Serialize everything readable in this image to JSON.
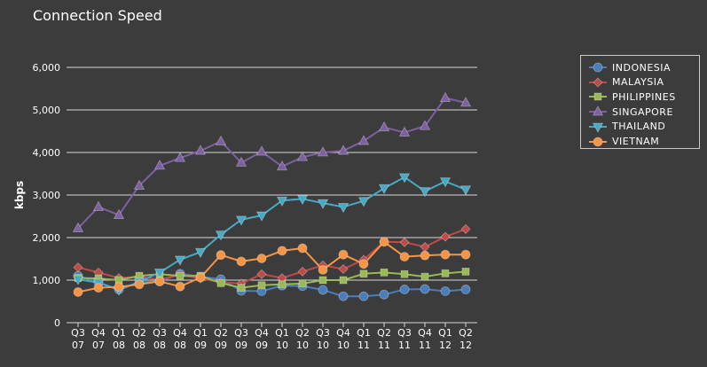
{
  "chart_data": {
    "type": "line",
    "title": "Connection Speed",
    "xlabel": "",
    "ylabel": "kbps",
    "ylim": [
      0,
      6000
    ],
    "yticks": [
      0,
      1000,
      2000,
      3000,
      4000,
      5000,
      6000
    ],
    "ytick_labels": [
      "0",
      "1,000",
      "2,000",
      "3,000",
      "4,000",
      "5,000",
      "6,000"
    ],
    "grid": true,
    "legend_position": "top-right",
    "categories": [
      [
        "Q3",
        "07"
      ],
      [
        "Q4",
        "07"
      ],
      [
        "Q1",
        "08"
      ],
      [
        "Q2",
        "08"
      ],
      [
        "Q3",
        "08"
      ],
      [
        "Q4",
        "08"
      ],
      [
        "Q1",
        "09"
      ],
      [
        "Q2",
        "09"
      ],
      [
        "Q3",
        "09"
      ],
      [
        "Q4",
        "09"
      ],
      [
        "Q1",
        "10"
      ],
      [
        "Q2",
        "10"
      ],
      [
        "Q3",
        "10"
      ],
      [
        "Q4",
        "10"
      ],
      [
        "Q1",
        "11"
      ],
      [
        "Q2",
        "11"
      ],
      [
        "Q3",
        "11"
      ],
      [
        "Q4",
        "11"
      ],
      [
        "Q1",
        "12"
      ],
      [
        "Q2",
        "12"
      ]
    ],
    "series": [
      {
        "name": "INDONESIA",
        "color": "#4a7ebb",
        "marker": "circle",
        "values": [
          1100,
          950,
          780,
          950,
          970,
          1150,
          1080,
          1020,
          750,
          740,
          870,
          860,
          770,
          620,
          620,
          660,
          780,
          790,
          740,
          780
        ]
      },
      {
        "name": "MALAYSIA",
        "color": "#be4b48",
        "marker": "diamond",
        "values": [
          1300,
          1180,
          1050,
          1080,
          1010,
          1130,
          1040,
          950,
          920,
          1140,
          1050,
          1200,
          1350,
          1260,
          1480,
          1900,
          1890,
          1780,
          2020,
          2200
        ]
      },
      {
        "name": "PHILIPPINES",
        "color": "#98b954",
        "marker": "square",
        "values": [
          1050,
          1040,
          1000,
          1100,
          1140,
          1100,
          1100,
          930,
          820,
          880,
          900,
          920,
          1000,
          1000,
          1150,
          1180,
          1140,
          1080,
          1160,
          1200
        ]
      },
      {
        "name": "SINGAPORE",
        "color": "#7d60a0",
        "marker": "triangle-up",
        "values": [
          2220,
          2720,
          2530,
          3220,
          3690,
          3870,
          4040,
          4260,
          3760,
          4020,
          3670,
          3890,
          4000,
          4040,
          4270,
          4590,
          4470,
          4620,
          5280,
          5170
        ]
      },
      {
        "name": "THAILAND",
        "color": "#46aac5",
        "marker": "triangle-down",
        "values": [
          1020,
          940,
          770,
          960,
          1180,
          1480,
          1660,
          2070,
          2420,
          2520,
          2870,
          2910,
          2810,
          2720,
          2860,
          3160,
          3420,
          3090,
          3320,
          3130
        ]
      },
      {
        "name": "VIETNAM",
        "color": "#f69545",
        "marker": "circle",
        "values": [
          720,
          820,
          840,
          900,
          970,
          850,
          1060,
          1590,
          1440,
          1510,
          1690,
          1750,
          1240,
          1600,
          1380,
          1900,
          1550,
          1580,
          1600,
          1600
        ]
      }
    ]
  }
}
